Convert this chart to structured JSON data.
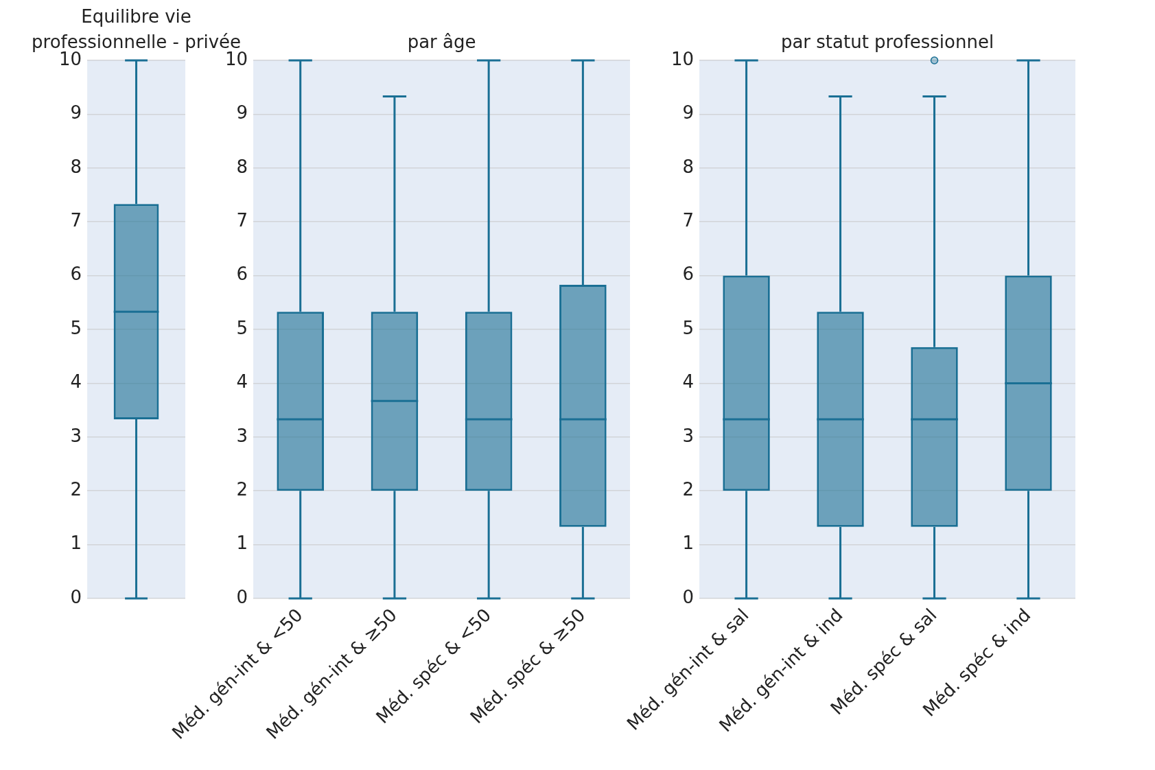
{
  "chart_data": [
    {
      "type": "box",
      "title": "Equilibre vie professionnelle - privée",
      "categories": [
        null
      ],
      "color": "#1a6f94",
      "ylim": [
        0,
        10
      ],
      "yticks": [
        0,
        1,
        2,
        3,
        4,
        5,
        6,
        7,
        8,
        9,
        10
      ],
      "grid": "y",
      "boxes": [
        {
          "low": 0,
          "q1": 3.33,
          "median": 5.33,
          "q3": 7.33,
          "high": 10
        }
      ]
    },
    {
      "type": "box",
      "title": "par âge",
      "categories": [
        "Méd. gén-int & <50",
        "Méd. gén-int & ≥50",
        "Méd. spéc & <50",
        "Méd. spéc & ≥50"
      ],
      "color": "#1a6f94",
      "ylim": [
        0,
        10
      ],
      "yticks": [
        0,
        1,
        2,
        3,
        4,
        5,
        6,
        7,
        8,
        9,
        10
      ],
      "grid": "y",
      "boxes": [
        {
          "low": 0,
          "q1": 2,
          "median": 3.33,
          "q3": 5.33,
          "high": 10
        },
        {
          "low": 0,
          "q1": 2,
          "median": 3.67,
          "q3": 5.33,
          "high": 9.33
        },
        {
          "low": 0,
          "q1": 2,
          "median": 3.33,
          "q3": 5.33,
          "high": 10
        },
        {
          "low": 0,
          "q1": 1.33,
          "median": 3.33,
          "q3": 5.83,
          "high": 10
        }
      ]
    },
    {
      "type": "box",
      "title": "par statut professionnel",
      "categories": [
        "Méd. gén-int & sal",
        "Méd. gén-int & ind",
        "Méd. spéc & sal",
        "Méd. spéc & ind"
      ],
      "color": "#1a6f94",
      "ylim": [
        0,
        10
      ],
      "yticks": [
        0,
        1,
        2,
        3,
        4,
        5,
        6,
        7,
        8,
        9,
        10
      ],
      "grid": "y",
      "boxes": [
        {
          "low": 0,
          "q1": 2,
          "median": 3.33,
          "q3": 6,
          "high": 10
        },
        {
          "low": 0,
          "q1": 1.33,
          "median": 3.33,
          "q3": 5.33,
          "high": 9.33
        },
        {
          "low": 0,
          "q1": 1.33,
          "median": 3.33,
          "q3": 4.67,
          "high": 9.33,
          "outliers": [
            10
          ]
        },
        {
          "low": 0,
          "q1": 2,
          "median": 4,
          "q3": 6,
          "high": 10
        }
      ]
    }
  ]
}
